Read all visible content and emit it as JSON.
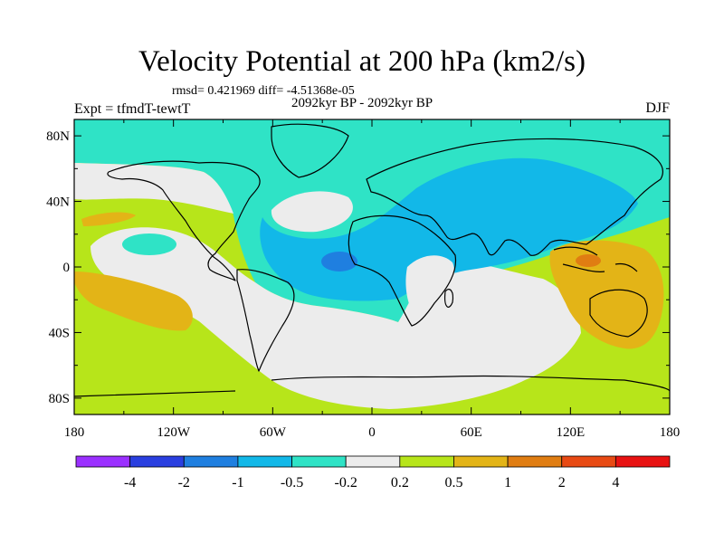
{
  "title": "Velocity Potential at 200 hPa (km2/s)",
  "stats": "rmsd= 0.421969 diff= -4.51368e-05",
  "period": "2092kyr BP - 2092kyr BP",
  "experiment": "Expt = tfmdT-tewtT",
  "season": "DJF",
  "axes": {
    "lat_labels": [
      "80N",
      "40N",
      "0",
      "40S",
      "80S"
    ],
    "lat_values": [
      80,
      40,
      0,
      -40,
      -80
    ],
    "lon_labels": [
      "180",
      "120W",
      "60W",
      "0",
      "60E",
      "120E",
      "180"
    ],
    "lon_values": [
      -180,
      -120,
      -60,
      0,
      60,
      120,
      180
    ],
    "lat_range": [
      -90,
      90
    ],
    "lon_range": [
      -180,
      180
    ]
  },
  "colorbar": {
    "labels": [
      "-4",
      "-2",
      "-1",
      "-0.5",
      "-0.2",
      "0.2",
      "0.5",
      "1",
      "2",
      "4"
    ],
    "colors": [
      "#9b30ff",
      "#2a3fe0",
      "#1f7fe0",
      "#12b8e8",
      "#2fe3c6",
      "#ececec",
      "#b7e51a",
      "#e3b417",
      "#e07d12",
      "#e84a14",
      "#e81212"
    ]
  },
  "field_colors": {
    "neg_lt_m2": "#2a3fe0",
    "neg_m2_m1": "#1f7fe0",
    "neg_m1_m05": "#12b8e8",
    "neg_m05_m02": "#2fe3c6",
    "neutral": "#ececec",
    "pos_02_05": "#b7e51a",
    "pos_05_1": "#e3b417",
    "pos_1_2": "#e07d12"
  }
}
